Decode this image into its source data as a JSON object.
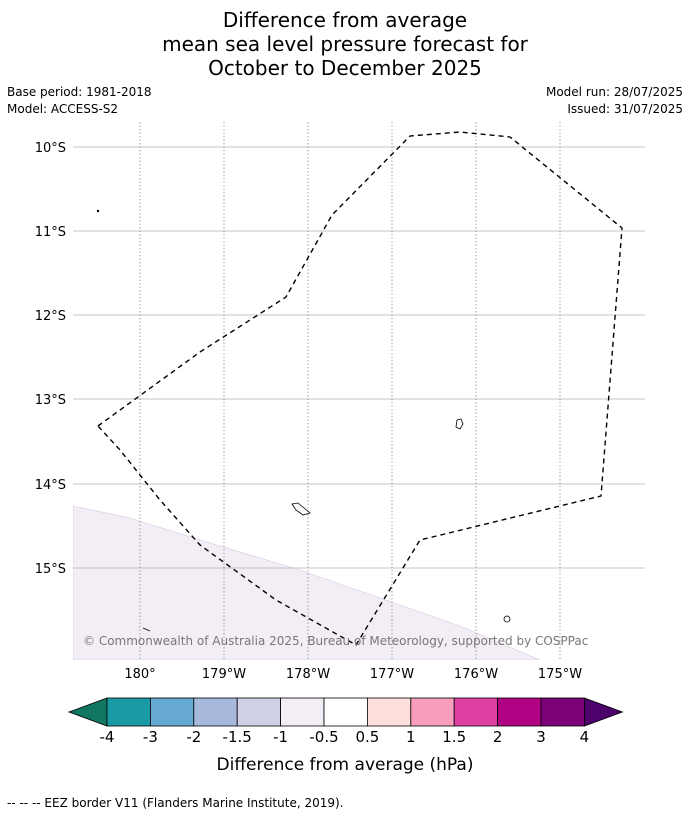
{
  "title": {
    "line1": "Difference from average",
    "line2": "mean sea level pressure forecast for",
    "line3": "October to December 2025"
  },
  "meta_left": {
    "base_period": "Base period: 1981-2018",
    "model": "Model: ACCESS-S2"
  },
  "meta_right": {
    "model_run": "Model run: 28/07/2025",
    "issued": "Issued: 31/07/2025"
  },
  "map": {
    "lat_labels": [
      "10°S",
      "11°S",
      "12°S",
      "13°S",
      "14°S",
      "15°S"
    ],
    "lon_labels": [
      "180°",
      "179°W",
      "178°W",
      "177°W",
      "176°W",
      "175°W"
    ],
    "copyright": "© Commonwealth of Australia 2025, Bureau of Meteorology, supported by COSPPac",
    "anomaly_fill_color": "#f3eef5",
    "eez_border_style": "dashed black"
  },
  "colorbar": {
    "label": "Difference from average (hPa)",
    "tick_labels": [
      "-4",
      "-3",
      "-2",
      "-1.5",
      "-1",
      "-0.5",
      "0.5",
      "1",
      "1.5",
      "2",
      "3",
      "4"
    ],
    "colors": [
      "#0f7762",
      "#1a9ba4",
      "#66aad2",
      "#a6b9dc",
      "#cfcfe6",
      "#f3eef5",
      "#ffffff",
      "#ffdede",
      "#f89ebc",
      "#df3fa0",
      "#b10184",
      "#7a0177",
      "#4c016b"
    ]
  },
  "footnote": "--  --  -- EEZ border V11 (Flanders Marine Institute, 2019)."
}
